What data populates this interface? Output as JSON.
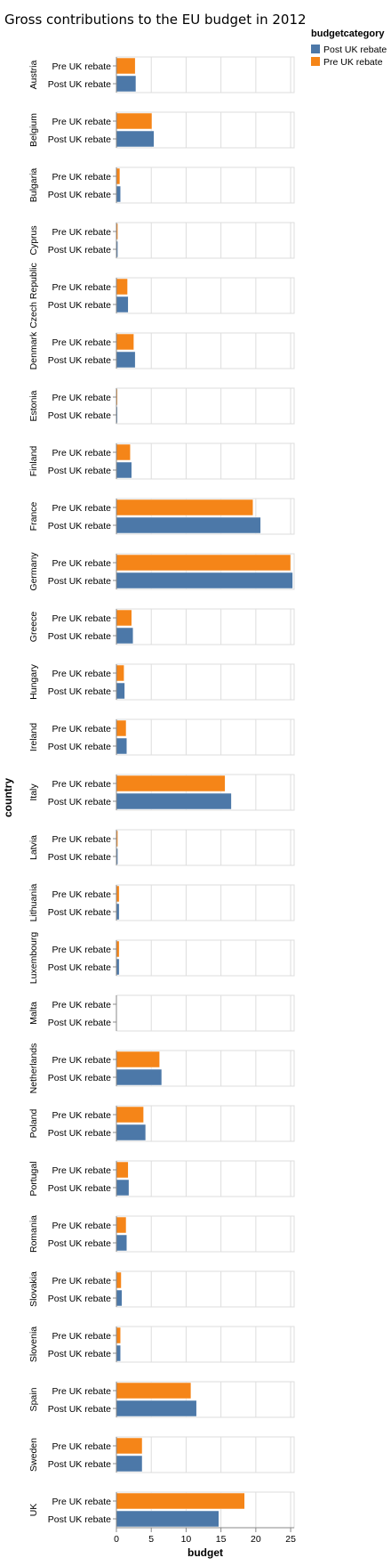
{
  "chart_data": {
    "type": "bar",
    "title": "Gross contributions to the EU budget in 2012",
    "facet_label": "country",
    "xlabel": "budget",
    "xlim": [
      0,
      25.5
    ],
    "x_ticks": [
      0,
      5,
      10,
      15,
      20,
      25
    ],
    "grid": true,
    "legend": {
      "title": "budgetcategory",
      "placement": "top-right",
      "entries": [
        {
          "name": "Post UK rebate",
          "color": "#4c78a8"
        },
        {
          "name": "Pre UK rebate",
          "color": "#f58518"
        }
      ]
    },
    "row_categories": [
      "Pre UK rebate",
      "Post UK rebate"
    ],
    "facets": [
      {
        "country": "Austria",
        "pre": 2.7,
        "post": 2.8
      },
      {
        "country": "Belgium",
        "pre": 5.1,
        "post": 5.4
      },
      {
        "country": "Bulgaria",
        "pre": 0.5,
        "post": 0.6
      },
      {
        "country": "Cyprus",
        "pre": 0.2,
        "post": 0.2
      },
      {
        "country": "Czech Republic",
        "pre": 1.6,
        "post": 1.7
      },
      {
        "country": "Denmark",
        "pre": 2.5,
        "post": 2.7
      },
      {
        "country": "Estonia",
        "pre": 0.15,
        "post": 0.15
      },
      {
        "country": "Finland",
        "pre": 2.0,
        "post": 2.2
      },
      {
        "country": "France",
        "pre": 19.6,
        "post": 20.7
      },
      {
        "country": "Germany",
        "pre": 25.0,
        "post": 25.3
      },
      {
        "country": "Greece",
        "pre": 2.2,
        "post": 2.4
      },
      {
        "country": "Hungary",
        "pre": 1.1,
        "post": 1.2
      },
      {
        "country": "Ireland",
        "pre": 1.4,
        "post": 1.5
      },
      {
        "country": "Italy",
        "pre": 15.6,
        "post": 16.5
      },
      {
        "country": "Latvia",
        "pre": 0.2,
        "post": 0.2
      },
      {
        "country": "Lithuania",
        "pre": 0.4,
        "post": 0.4
      },
      {
        "country": "Luxembourg",
        "pre": 0.4,
        "post": 0.4
      },
      {
        "country": "Malta",
        "pre": 0.05,
        "post": 0.05
      },
      {
        "country": "Netherlands",
        "pre": 6.2,
        "post": 6.5
      },
      {
        "country": "Poland",
        "pre": 3.9,
        "post": 4.2
      },
      {
        "country": "Portugal",
        "pre": 1.7,
        "post": 1.8
      },
      {
        "country": "Romania",
        "pre": 1.4,
        "post": 1.5
      },
      {
        "country": "Slovakia",
        "pre": 0.7,
        "post": 0.8
      },
      {
        "country": "Slovenia",
        "pre": 0.6,
        "post": 0.6
      },
      {
        "country": "Spain",
        "pre": 10.7,
        "post": 11.5
      },
      {
        "country": "Sweden",
        "pre": 3.7,
        "post": 3.7
      },
      {
        "country": "UK",
        "pre": 18.4,
        "post": 14.7
      }
    ]
  }
}
